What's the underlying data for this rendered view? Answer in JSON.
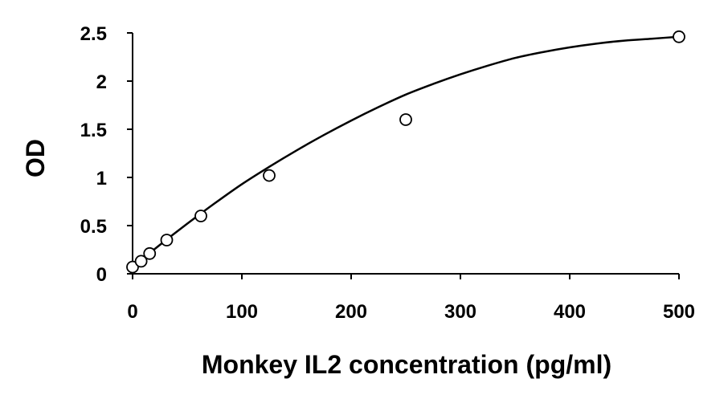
{
  "chart_data": {
    "type": "scatter",
    "title": "",
    "xlabel": "Monkey IL2 concentration (pg/ml)",
    "ylabel": "OD",
    "xlim": [
      0,
      500
    ],
    "ylim": [
      0,
      2.5
    ],
    "x_ticks": [
      0,
      100,
      200,
      300,
      400,
      500
    ],
    "y_ticks": [
      0,
      0.5,
      1,
      1.5,
      2,
      2.5
    ],
    "x_tick_labels": [
      "0",
      "100",
      "200",
      "300",
      "400",
      "500"
    ],
    "y_tick_labels": [
      "0",
      "0.5",
      "1",
      "1.5",
      "2",
      "2.5"
    ],
    "grid": false,
    "legend": "none",
    "series": [
      {
        "x": [
          0,
          7.8,
          15.6,
          31.25,
          62.5,
          125,
          250,
          500
        ],
        "y": [
          0.07,
          0.13,
          0.21,
          0.35,
          0.6,
          1.02,
          1.6,
          2.46
        ],
        "marker": "open-circle",
        "color": "#000000"
      }
    ],
    "fit_curve": {
      "type": "polynomial",
      "x": [
        0,
        25,
        50,
        75,
        100,
        125,
        150,
        175,
        200,
        225,
        250,
        275,
        300,
        325,
        350,
        375,
        400,
        425,
        450,
        475,
        500
      ],
      "y": [
        0.07,
        0.3,
        0.52,
        0.73,
        0.93,
        1.11,
        1.28,
        1.44,
        1.59,
        1.73,
        1.86,
        1.97,
        2.07,
        2.16,
        2.24,
        2.3,
        2.35,
        2.39,
        2.42,
        2.44,
        2.46
      ],
      "color": "#000000"
    }
  }
}
